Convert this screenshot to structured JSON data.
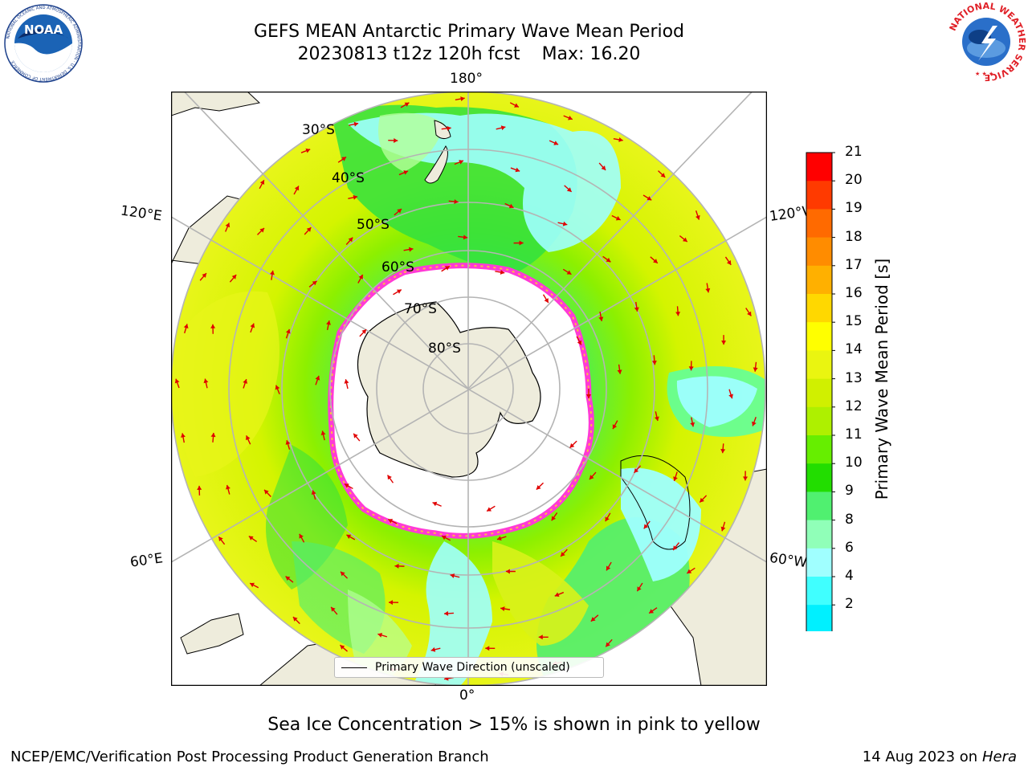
{
  "header": {
    "title": "GEFS MEAN Antarctic Primary Wave Mean Period",
    "run": "20230813 t12z 120h fcst",
    "max_label": "Max: 16.20"
  },
  "logos": {
    "left": {
      "name": "noaa-logo",
      "text": "NOAA",
      "ring_text": "NATIONAL OCEANIC AND ATMOSPHERIC ADMINISTRATION · U.S. DEPARTMENT OF COMMERCE"
    },
    "right": {
      "name": "nws-logo",
      "ring_text": "NATIONAL WEATHER SERVICE"
    }
  },
  "map": {
    "projection": "south-polar-stereographic",
    "longitude_labels": {
      "top": "180°",
      "bottom": "0°",
      "upper_left": "120°E",
      "upper_right": "120°W",
      "lower_left": "60°E",
      "lower_right": "60°W"
    },
    "latitude_labels": [
      "30°S",
      "40°S",
      "50°S",
      "60°S",
      "70°S",
      "80°S"
    ],
    "legend": {
      "line_label": "Primary Wave Direction (unscaled)"
    },
    "colors": {
      "land": "#eeecdc",
      "ice_edge": "#ff3ad6",
      "arrow": "#e00000"
    }
  },
  "colorbar": {
    "title": "Primary Wave Mean Period [s]",
    "ticks": [
      "21",
      "20",
      "19",
      "18",
      "17",
      "16",
      "15",
      "14",
      "13",
      "12",
      "11",
      "10",
      "9",
      "8",
      "6",
      "4",
      "2"
    ],
    "colors": [
      "#ff0000",
      "#ff3a00",
      "#ff6a00",
      "#ff8c00",
      "#ffb000",
      "#ffd800",
      "#ffff00",
      "#eaf510",
      "#d0f000",
      "#aef000",
      "#66ee00",
      "#22dd00",
      "#50f070",
      "#90ffb8",
      "#a0ffff",
      "#40ffff",
      "#00f0ff",
      "#00a8ff",
      "#0050ff"
    ],
    "extend_color": "#0000ff"
  },
  "caption": "Sea Ice Concentration > 15% is shown in pink to yellow",
  "footer": {
    "left": "NCEP/EMC/Verification Post Processing Product Generation Branch",
    "date": "14 Aug 2023 on",
    "machine": "Hera"
  }
}
